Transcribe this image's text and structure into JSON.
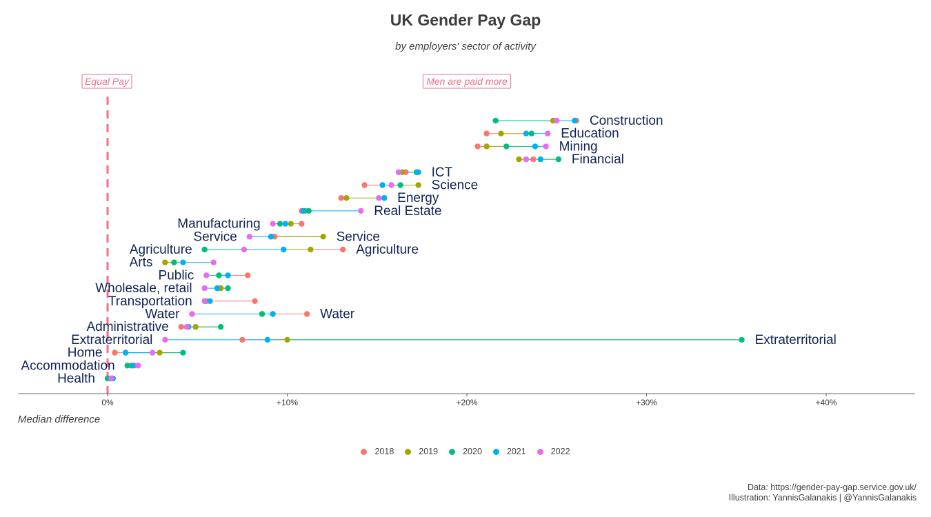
{
  "title": "UK Gender Pay Gap",
  "subtitle": "by employers' sector of activity",
  "axis_title": "Median difference",
  "annotations": {
    "equal_pay": "Equal Pay",
    "men_paid_more": "Men are paid more"
  },
  "caption": {
    "line1": "Data: https://gender-pay-gap.service.gov.uk/",
    "line2": "Illustration: YannisGalanakis | @YannisGalanakis"
  },
  "legend": [
    {
      "label": "2018",
      "color": "#F8766D"
    },
    {
      "label": "2019",
      "color": "#A3A500"
    },
    {
      "label": "2020",
      "color": "#00BF7D"
    },
    {
      "label": "2021",
      "color": "#00B0F6"
    },
    {
      "label": "2022",
      "color": "#E76BF3"
    }
  ],
  "chart_data": {
    "type": "dumbbell",
    "title": "UK Gender Pay Gap",
    "subtitle": "by employers' sector of activity",
    "xlabel": "Median difference",
    "xlim": [
      -5,
      45
    ],
    "x_ticks": [
      "0%",
      "+10%",
      "+20%",
      "+30%",
      "+40%"
    ],
    "x_tick_values": [
      0,
      10,
      20,
      30,
      40
    ],
    "reference_line": 0,
    "years": [
      "2018",
      "2019",
      "2020",
      "2021",
      "2022"
    ],
    "rows": [
      {
        "sector": "Construction",
        "label_side": "right",
        "values": [
          26.1,
          24.8,
          21.6,
          26.0,
          25.0
        ]
      },
      {
        "sector": "Education",
        "label_side": "right",
        "values": [
          21.1,
          21.9,
          23.6,
          23.3,
          24.5
        ]
      },
      {
        "sector": "Mining",
        "label_side": "right",
        "values": [
          20.6,
          21.1,
          22.2,
          23.8,
          24.4
        ]
      },
      {
        "sector": "Financial",
        "label_side": "right",
        "values": [
          23.7,
          22.9,
          25.1,
          24.1,
          23.3
        ]
      },
      {
        "sector": "ICT",
        "label_side": "right",
        "values": [
          16.6,
          16.4,
          17.2,
          17.3,
          16.2
        ]
      },
      {
        "sector": "Science",
        "label_side": "right",
        "values": [
          14.3,
          17.3,
          16.3,
          15.3,
          15.8
        ]
      },
      {
        "sector": "Energy",
        "label_side": "right",
        "values": [
          13.0,
          13.3,
          15.4,
          15.4,
          15.1
        ]
      },
      {
        "sector": "Real Estate",
        "label_side": "right",
        "values": [
          10.8,
          11.0,
          11.2,
          10.9,
          14.1
        ]
      },
      {
        "sector": "Manufacturing",
        "label_side": "left",
        "values": [
          10.8,
          10.2,
          9.6,
          9.9,
          9.2
        ]
      },
      {
        "sector": "Service",
        "label_side": "both",
        "values": [
          9.3,
          12.0,
          9.1,
          9.1,
          7.9
        ]
      },
      {
        "sector": "Agriculture",
        "label_side": "both",
        "values": [
          13.1,
          11.3,
          5.4,
          9.8,
          7.6
        ]
      },
      {
        "sector": "Arts",
        "label_side": "left",
        "values": [
          3.7,
          3.2,
          3.7,
          4.2,
          5.9
        ]
      },
      {
        "sector": "Public",
        "label_side": "left",
        "values": [
          7.8,
          6.2,
          6.2,
          6.7,
          5.5
        ]
      },
      {
        "sector": "Wholesale, retail",
        "label_side": "left",
        "values": [
          6.2,
          6.3,
          6.7,
          6.1,
          5.4
        ]
      },
      {
        "sector": "Transportation",
        "label_side": "left",
        "values": [
          8.2,
          5.5,
          5.4,
          5.7,
          5.4
        ]
      },
      {
        "sector": "Water",
        "label_side": "both",
        "values": [
          11.1,
          8.6,
          8.6,
          9.2,
          4.7
        ]
      },
      {
        "sector": "Administrative",
        "label_side": "left",
        "values": [
          4.1,
          4.9,
          6.3,
          4.5,
          4.4
        ]
      },
      {
        "sector": "Extraterritorial",
        "label_side": "both",
        "values": [
          7.5,
          10.0,
          35.3,
          8.9,
          3.2
        ]
      },
      {
        "sector": "Home",
        "label_side": "left",
        "values": [
          0.4,
          2.9,
          4.2,
          1.0,
          2.5
        ]
      },
      {
        "sector": "Accommodation",
        "label_side": "left",
        "values": [
          1.5,
          1.3,
          1.1,
          1.4,
          1.7
        ]
      },
      {
        "sector": "Health",
        "label_side": "left",
        "values": [
          0.1,
          0.2,
          0.0,
          0.3,
          0.2
        ]
      }
    ]
  }
}
